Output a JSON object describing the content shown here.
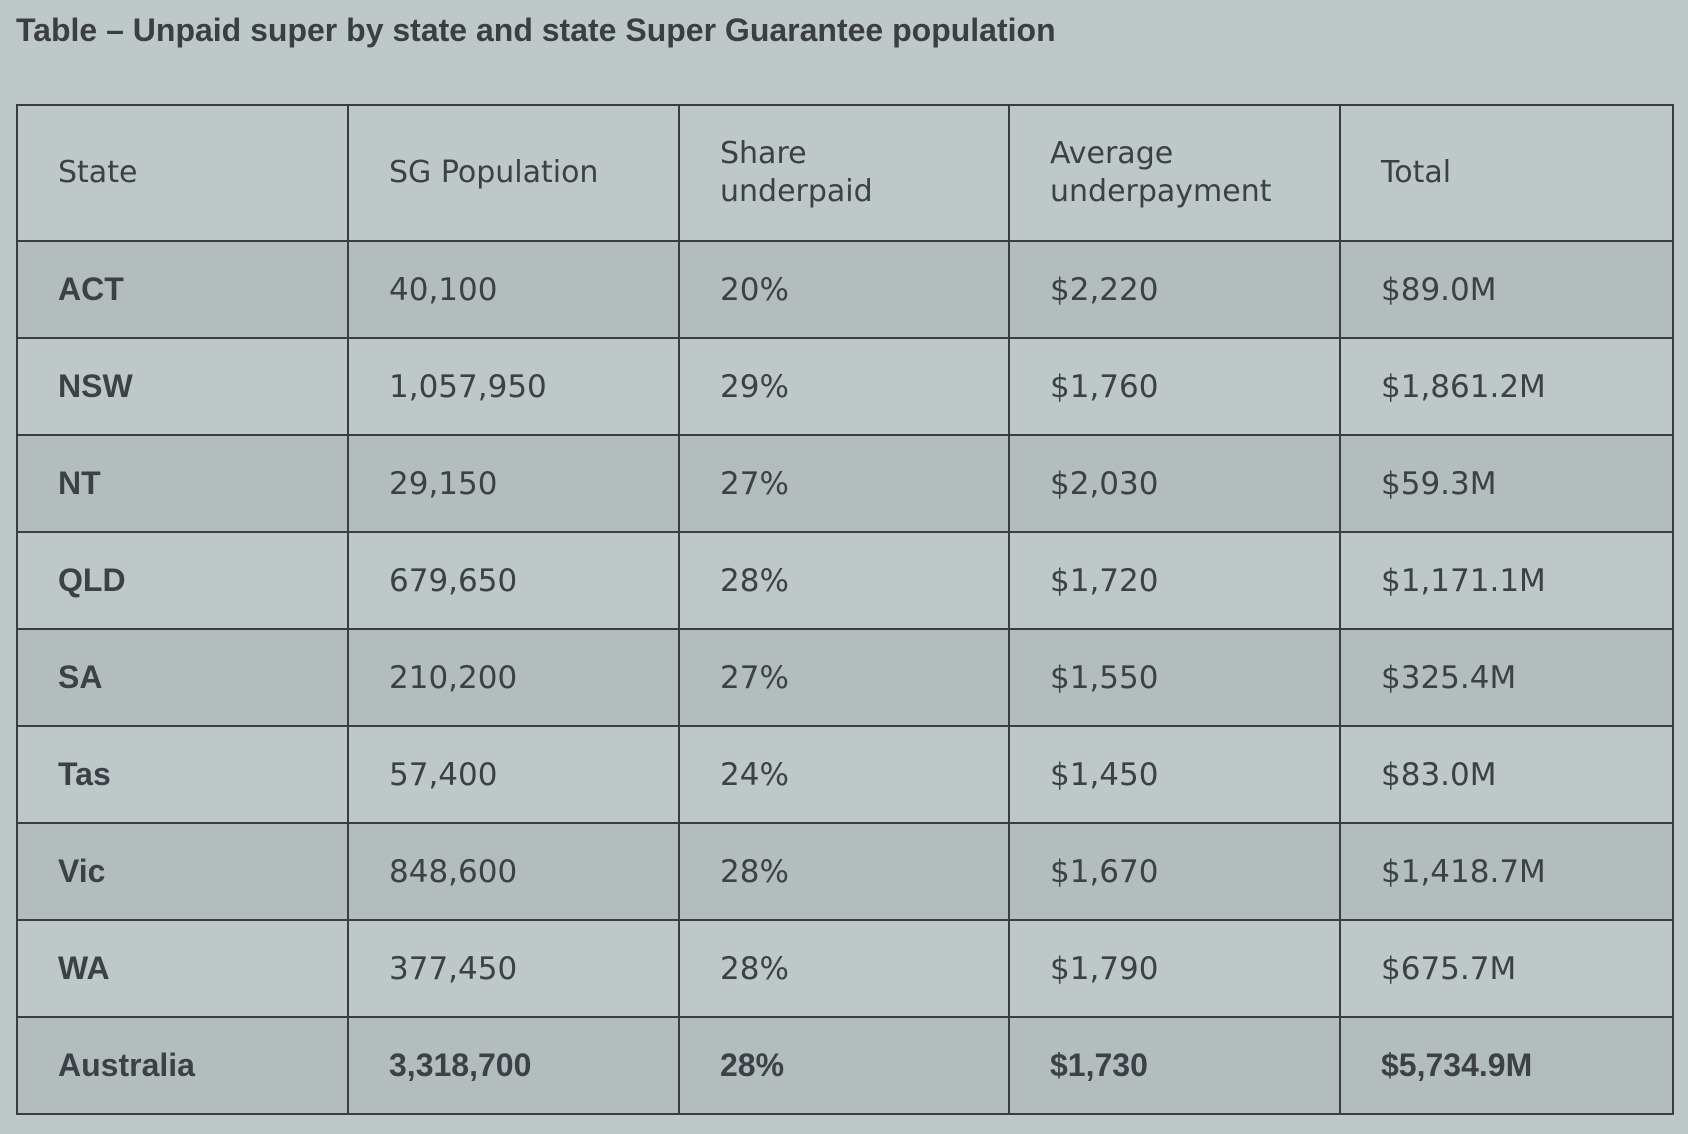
{
  "title": "Table – Unpaid super by state and state Super Guarantee population",
  "headers": [
    "State",
    "SG Population",
    "Share underpaid",
    "Average underpayment",
    "Total"
  ],
  "rows": [
    [
      "ACT",
      "40,100",
      "20%",
      "$2,220",
      "$89.0M"
    ],
    [
      "NSW",
      "1,057,950",
      "29%",
      "$1,760",
      "$1,861.2M"
    ],
    [
      "NT",
      "29,150",
      "27%",
      "$2,030",
      "$59.3M"
    ],
    [
      "QLD",
      "679,650",
      "28%",
      "$1,720",
      "$1,171.1M"
    ],
    [
      "SA",
      "210,200",
      "27%",
      "$1,550",
      "$325.4M"
    ],
    [
      "Tas",
      "57,400",
      "24%",
      "$1,450",
      "$83.0M"
    ],
    [
      "Vic",
      "848,600",
      "28%",
      "$1,670",
      "$1,418.7M"
    ],
    [
      "WA",
      "377,450",
      "28%",
      "$1,790",
      "$675.7M"
    ]
  ],
  "total_row": [
    "Australia",
    "3,318,700",
    "28%",
    "$1,730",
    "$5,734.9M"
  ],
  "colors": {
    "background": "#bfc8c8",
    "row_shade": "#b4bdbd",
    "border": "#3a3e43",
    "text": "#3d4146"
  }
}
